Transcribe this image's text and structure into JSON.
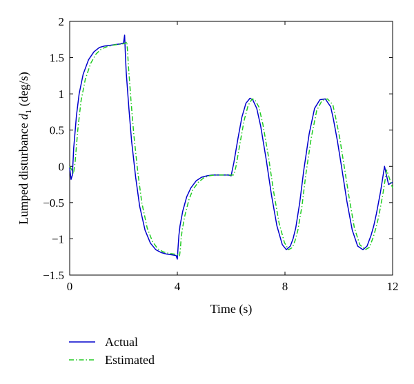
{
  "chart_data": {
    "type": "line",
    "title": "",
    "xlabel": "Time (s)",
    "ylabel_main": "Lumped disturbance ",
    "ylabel_var": "d",
    "ylabel_sub": "1",
    "ylabel_unit": " (deg/s)",
    "xlim": [
      0,
      12
    ],
    "ylim": [
      -1.5,
      2
    ],
    "xticks": [
      0,
      4,
      8,
      12
    ],
    "xtick_labels": [
      "0",
      "4",
      "8",
      "12"
    ],
    "yticks": [
      -1.5,
      -1,
      -0.5,
      0,
      0.5,
      1,
      1.5,
      2
    ],
    "ytick_labels": [
      "−1.5",
      "−1",
      "−0.5",
      "0",
      "0.5",
      "1",
      "1.5",
      "2"
    ],
    "grid": false,
    "legend_position": "below plot, left",
    "series": [
      {
        "name": "Actual",
        "color": "#0000cc",
        "style": "solid",
        "x": [
          0,
          0.05,
          0.1,
          0.15,
          0.25,
          0.35,
          0.5,
          0.7,
          0.9,
          1.1,
          1.3,
          1.5,
          1.7,
          1.9,
          2.0,
          2.04,
          2.07,
          2.1,
          2.2,
          2.3,
          2.45,
          2.6,
          2.8,
          3.0,
          3.2,
          3.4,
          3.6,
          3.8,
          3.95,
          4.0,
          4.03,
          4.06,
          4.1,
          4.2,
          4.35,
          4.5,
          4.7,
          4.9,
          5.1,
          5.3,
          5.5,
          5.7,
          5.9,
          6.0,
          6.05,
          6.1,
          6.25,
          6.4,
          6.55,
          6.7,
          6.8,
          6.95,
          7.1,
          7.3,
          7.5,
          7.7,
          7.9,
          8.05,
          8.2,
          8.3,
          8.4,
          8.55,
          8.7,
          8.9,
          9.1,
          9.3,
          9.5,
          9.7,
          9.8,
          9.95,
          10.1,
          10.3,
          10.5,
          10.7,
          10.9,
          11.05,
          11.2,
          11.3,
          11.4,
          11.55,
          11.7,
          11.85,
          12.0
        ],
        "y": [
          -0.02,
          -0.18,
          -0.12,
          0.25,
          0.7,
          1.0,
          1.27,
          1.47,
          1.58,
          1.64,
          1.66,
          1.67,
          1.68,
          1.69,
          1.7,
          1.81,
          1.55,
          1.3,
          0.8,
          0.35,
          -0.15,
          -0.55,
          -0.88,
          -1.06,
          -1.15,
          -1.19,
          -1.21,
          -1.22,
          -1.23,
          -1.28,
          -1.1,
          -0.95,
          -0.82,
          -0.62,
          -0.42,
          -0.3,
          -0.2,
          -0.15,
          -0.13,
          -0.12,
          -0.12,
          -0.12,
          -0.12,
          -0.13,
          -0.04,
          0.05,
          0.38,
          0.68,
          0.87,
          0.94,
          0.92,
          0.8,
          0.55,
          0.1,
          -0.4,
          -0.82,
          -1.08,
          -1.15,
          -1.1,
          -1.0,
          -0.85,
          -0.5,
          -0.05,
          0.45,
          0.8,
          0.92,
          0.93,
          0.82,
          0.65,
          0.35,
          0.0,
          -0.48,
          -0.88,
          -1.1,
          -1.15,
          -1.1,
          -0.95,
          -0.82,
          -0.65,
          -0.35,
          -0.0,
          -0.25,
          -0.22
        ]
      },
      {
        "name": "Estimated",
        "color": "#22cc22",
        "style": "dashdot",
        "x": [
          0,
          0.08,
          0.14,
          0.2,
          0.3,
          0.42,
          0.58,
          0.78,
          0.98,
          1.18,
          1.38,
          1.58,
          1.78,
          1.98,
          2.08,
          2.12,
          2.15,
          2.18,
          2.28,
          2.38,
          2.53,
          2.68,
          2.88,
          3.08,
          3.28,
          3.48,
          3.68,
          3.88,
          4.03,
          4.08,
          4.11,
          4.14,
          4.18,
          4.28,
          4.43,
          4.58,
          4.78,
          4.98,
          5.18,
          5.38,
          5.58,
          5.78,
          5.98,
          6.08,
          6.13,
          6.18,
          6.33,
          6.48,
          6.63,
          6.78,
          6.88,
          7.03,
          7.18,
          7.38,
          7.58,
          7.78,
          7.98,
          8.13,
          8.28,
          8.38,
          8.48,
          8.63,
          8.78,
          8.98,
          9.18,
          9.38,
          9.58,
          9.78,
          9.88,
          10.03,
          10.18,
          10.38,
          10.58,
          10.78,
          10.98,
          11.13,
          11.28,
          11.38,
          11.48,
          11.63,
          11.78,
          11.93,
          12.0
        ],
        "y": [
          0.0,
          -0.05,
          -0.1,
          0.05,
          0.5,
          0.9,
          1.2,
          1.42,
          1.55,
          1.62,
          1.65,
          1.67,
          1.68,
          1.69,
          1.7,
          1.72,
          1.6,
          1.4,
          0.9,
          0.45,
          -0.08,
          -0.5,
          -0.85,
          -1.04,
          -1.14,
          -1.18,
          -1.2,
          -1.21,
          -1.22,
          -1.24,
          -1.15,
          -1.0,
          -0.88,
          -0.68,
          -0.46,
          -0.32,
          -0.22,
          -0.16,
          -0.13,
          -0.12,
          -0.12,
          -0.12,
          -0.12,
          -0.12,
          -0.08,
          0.0,
          0.32,
          0.63,
          0.84,
          0.93,
          0.92,
          0.82,
          0.58,
          0.15,
          -0.35,
          -0.78,
          -1.05,
          -1.15,
          -1.12,
          -1.02,
          -0.88,
          -0.55,
          -0.1,
          0.4,
          0.77,
          0.91,
          0.93,
          0.85,
          0.68,
          0.4,
          0.05,
          -0.42,
          -0.85,
          -1.08,
          -1.15,
          -1.12,
          -0.98,
          -0.85,
          -0.7,
          -0.4,
          -0.05,
          -0.22,
          -0.3
        ]
      }
    ]
  }
}
